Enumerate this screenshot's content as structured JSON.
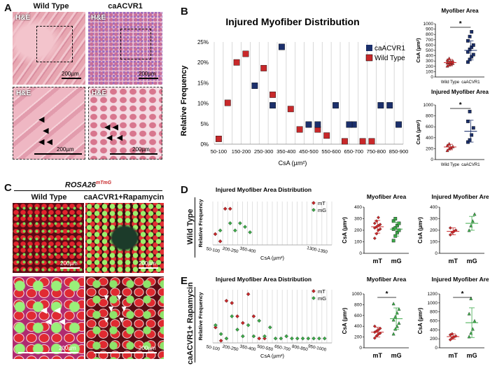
{
  "panel_labels": {
    "A": "A",
    "B": "B",
    "C": "C",
    "D": "D",
    "E": "E"
  },
  "panelA": {
    "col_titles": [
      "Wild Type",
      "caACVR1"
    ],
    "stain": "H&E",
    "scale_bar": "200µm"
  },
  "panelC": {
    "title_main": "ROSA26",
    "title_sup": "mTmG",
    "col_titles": [
      "Wild Type",
      "caACVR1+Rapamycin"
    ],
    "scale_bar": "200µm"
  },
  "row_labels": {
    "D": "Wild Type",
    "E": "caACVR1+ Rapamycin"
  },
  "colors": {
    "wild_type": "#c8282a",
    "caacvr1": "#1b2f6b",
    "mT": "#c8282a",
    "mG": "#3daa4a"
  },
  "chart_data": [
    {
      "id": "B_main",
      "type": "scatter",
      "title": "Injured Myofiber Distribution",
      "xlabel": "CsA (µm²)",
      "ylabel": "Relative Frequency",
      "ylim": [
        0,
        25
      ],
      "ytick_labels": [
        "0%",
        "5%",
        "10%",
        "15%",
        "20%",
        "25%"
      ],
      "xtick_labels": [
        "50-100",
        "150-200",
        "250-300",
        "350-400",
        "450-500",
        "550-600",
        "650-700",
        "750-800",
        "850-900"
      ],
      "legend": "top-right",
      "series": [
        {
          "name": "caACVR1",
          "marker": "square",
          "color": "#1b2f6b",
          "x": [
            4,
            7,
            10,
            11,
            13,
            15,
            18,
            19,
            20
          ],
          "y": [
            14.3,
            23.8,
            4.8,
            4.8,
            9.5,
            4.8,
            9.5,
            9.5,
            4.8
          ],
          "x2": [
            6
          ],
          "y2": [
            9.5
          ],
          "x3": [
            14.5
          ],
          "y3": [
            4.8
          ]
        },
        {
          "name": "Wild Type",
          "marker": "square",
          "color": "#c8282a",
          "x": [
            0,
            1,
            2,
            3,
            5,
            6,
            8,
            9,
            11,
            12,
            14,
            16,
            17
          ],
          "y": [
            1.3,
            10.1,
            20.0,
            22.1,
            18.6,
            12.1,
            8.6,
            3.6,
            3.6,
            2.1,
            0.7,
            0.7,
            0.7
          ]
        }
      ]
    },
    {
      "id": "B_myofiber",
      "type": "scatter",
      "title": "Myofiber Area",
      "ylabel": "CsA (µm²)",
      "ylim": [
        0,
        1000
      ],
      "yticks": [
        0,
        100,
        200,
        300,
        400,
        500,
        600,
        700,
        800,
        900,
        1000
      ],
      "categories": [
        "Wild Type",
        "caACVR1"
      ],
      "significance": "*",
      "series": [
        {
          "name": "Wild Type",
          "color": "#c8282a",
          "marker": "triangle",
          "mean": 270,
          "sd": 60,
          "values": [
            210,
            230,
            250,
            260,
            270,
            280,
            290,
            300,
            320,
            350
          ]
        },
        {
          "name": "caACVR1",
          "color": "#1b2f6b",
          "marker": "square",
          "mean": 500,
          "sd": 180,
          "values": [
            280,
            330,
            380,
            420,
            470,
            520,
            560,
            600,
            680,
            760,
            850
          ]
        }
      ]
    },
    {
      "id": "B_injured",
      "type": "scatter",
      "title": "Injured Myofiber Area",
      "ylabel": "CsA (µm²)",
      "ylim": [
        0,
        1000
      ],
      "yticks": [
        0,
        200,
        400,
        600,
        800,
        1000
      ],
      "categories": [
        "Wild Type",
        "caACVR1"
      ],
      "significance": "*",
      "series": [
        {
          "name": "Wild Type",
          "color": "#c8282a",
          "marker": "triangle",
          "mean": 230,
          "sd": 50,
          "values": [
            170,
            200,
            220,
            240,
            260,
            290
          ]
        },
        {
          "name": "caACVR1",
          "color": "#1b2f6b",
          "marker": "square",
          "mean": 520,
          "sd": 200,
          "values": [
            320,
            360,
            450,
            580,
            700,
            880
          ]
        }
      ]
    },
    {
      "id": "D_dist",
      "type": "scatter",
      "title": "Injured Myofiber Area  Distribution",
      "xlabel": "CsA (µm²)",
      "ylabel": "Relative Frequency",
      "xtick_labels": [
        "50-100",
        "200-250",
        "350-400",
        "1300-1350"
      ],
      "legend": "top-right",
      "series": [
        {
          "name": "mT",
          "color": "#c8282a",
          "marker": "diamond",
          "x": [
            0,
            1,
            2,
            3
          ],
          "y": [
            3,
            1,
            10,
            10
          ]
        },
        {
          "name": "mG",
          "color": "#3daa4a",
          "marker": "diamond",
          "x": [
            1,
            3,
            4,
            5,
            6,
            7
          ],
          "y": [
            4,
            6,
            4,
            6,
            5,
            3.5
          ]
        }
      ]
    },
    {
      "id": "D_myofiber",
      "type": "scatter",
      "title": "Myofiber Area",
      "ylabel": "CsA (µm²)",
      "ylim": [
        0,
        400
      ],
      "yticks": [
        0,
        100,
        200,
        300,
        400
      ],
      "categories": [
        "mT",
        "mG"
      ],
      "series": [
        {
          "name": "mT",
          "color": "#c8282a",
          "marker": "diamond",
          "mean": 230,
          "sd": 55,
          "values": [
            130,
            170,
            200,
            210,
            220,
            230,
            240,
            250,
            260,
            280,
            310
          ]
        },
        {
          "name": "mG",
          "color": "#3daa4a",
          "marker": "square",
          "mean": 210,
          "sd": 60,
          "values": [
            110,
            150,
            180,
            200,
            210,
            220,
            240,
            260,
            280,
            300
          ]
        }
      ]
    },
    {
      "id": "D_injured",
      "type": "scatter",
      "title": "Injured Myofiber Area",
      "ylabel": "CsA (µm²)",
      "ylim": [
        0,
        400
      ],
      "yticks": [
        0,
        100,
        200,
        300,
        400
      ],
      "categories": [
        "mT",
        "mG"
      ],
      "series": [
        {
          "name": "mT",
          "color": "#c8282a",
          "marker": "diamond",
          "mean": 190,
          "sd": 30,
          "values": [
            160,
            180,
            190,
            200,
            220
          ]
        },
        {
          "name": "mG",
          "color": "#3daa4a",
          "marker": "triangle",
          "mean": 260,
          "sd": 60,
          "values": [
            200,
            240,
            280,
            340
          ]
        }
      ]
    },
    {
      "id": "E_dist",
      "type": "scatter",
      "title": "Injured Myofiber Area  Distribution",
      "xlabel": "CsA (µm²)",
      "ylabel": "Relative Frequency",
      "xtick_labels": [
        "50-100",
        "200-250",
        "350-400",
        "500-550",
        "650-700",
        "800-850",
        "950-1000"
      ],
      "legend": "top-right",
      "series": [
        {
          "name": "mT",
          "color": "#c8282a",
          "marker": "diamond",
          "x": [
            0,
            1,
            2,
            3,
            4,
            5,
            6,
            7,
            8,
            9
          ],
          "y": [
            7,
            1,
            19,
            18,
            12,
            9,
            22,
            12,
            2,
            2
          ]
        },
        {
          "name": "mG",
          "color": "#3daa4a",
          "marker": "diamond",
          "x": [
            0,
            1,
            2,
            3,
            4,
            5,
            6,
            7,
            8,
            9,
            10,
            11,
            12,
            13,
            14,
            15,
            16,
            17,
            18,
            19,
            20
          ],
          "y": [
            8,
            4,
            2,
            12,
            6,
            3,
            8,
            3,
            10,
            3,
            7,
            2,
            2,
            3,
            2,
            2,
            2,
            2,
            2,
            2,
            2
          ]
        }
      ]
    },
    {
      "id": "E_myofiber",
      "type": "scatter",
      "title": "Myofiber Area",
      "ylabel": "CsA (µm²)",
      "ylim": [
        0,
        1000
      ],
      "yticks": [
        0,
        200,
        400,
        600,
        800,
        1000
      ],
      "categories": [
        "mT",
        "mG"
      ],
      "significance": "*",
      "series": [
        {
          "name": "mT",
          "color": "#c8282a",
          "marker": "diamond",
          "mean": 290,
          "sd": 90,
          "values": [
            180,
            220,
            250,
            270,
            290,
            310,
            330,
            360,
            400
          ]
        },
        {
          "name": "mG",
          "color": "#3daa4a",
          "marker": "triangle",
          "mean": 540,
          "sd": 200,
          "values": [
            260,
            350,
            400,
            460,
            520,
            580,
            650,
            720,
            820
          ]
        }
      ]
    },
    {
      "id": "E_injured",
      "type": "scatter",
      "title": "Injured Myofiber Area",
      "ylabel": "CsA (µm²)",
      "ylim": [
        0,
        1200
      ],
      "yticks": [
        0,
        200,
        400,
        600,
        800,
        1000,
        1200
      ],
      "categories": [
        "mT",
        "mG"
      ],
      "significance": "*",
      "series": [
        {
          "name": "mT",
          "color": "#c8282a",
          "marker": "diamond",
          "mean": 250,
          "sd": 60,
          "values": [
            180,
            220,
            240,
            260,
            290,
            310
          ]
        },
        {
          "name": "mG",
          "color": "#3daa4a",
          "marker": "triangle",
          "mean": 560,
          "sd": 330,
          "values": [
            250,
            330,
            420,
            600,
            760,
            1100
          ]
        }
      ]
    }
  ]
}
